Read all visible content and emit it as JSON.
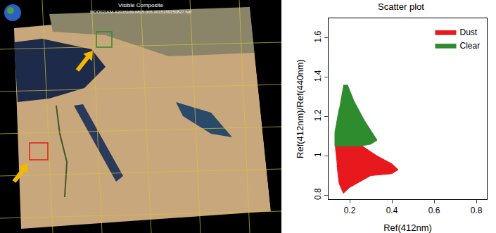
{
  "map": {
    "title": "Visible Composite",
    "file": "MOD021KM.A2015169.0815.005.2015169150827.hdf"
  },
  "chart_data": {
    "type": "scatter",
    "title": "Scatter plot",
    "x_label": "Ref(412nm)",
    "y_label": "Ref(412nm)/Ref(440nm)",
    "xlim": [
      0.1,
      0.85
    ],
    "xticks": [
      0.2,
      0.4,
      0.6,
      0.8
    ],
    "ylim": [
      0.78,
      1.7
    ],
    "yticks": [
      0.8,
      1.0,
      1.2,
      1.4,
      1.6
    ],
    "grid": false,
    "legend": "upper right",
    "series": [
      {
        "name": "Dust",
        "color": "#e8191c",
        "type": "area",
        "x": [
          0.13,
          0.26,
          0.33,
          0.4,
          0.43,
          0.4,
          0.3,
          0.2,
          0.17,
          0.15,
          0.14
        ],
        "y": [
          1.05,
          1.05,
          1.0,
          0.96,
          0.93,
          0.91,
          0.9,
          0.84,
          0.81,
          0.86,
          0.95
        ]
      },
      {
        "name": "Clear",
        "color": "#2e8b2e",
        "type": "area",
        "x": [
          0.17,
          0.19,
          0.22,
          0.27,
          0.33,
          0.3,
          0.25,
          0.13,
          0.13,
          0.15
        ],
        "y": [
          1.36,
          1.36,
          1.28,
          1.18,
          1.08,
          1.06,
          1.05,
          1.05,
          1.12,
          1.24
        ]
      }
    ]
  }
}
